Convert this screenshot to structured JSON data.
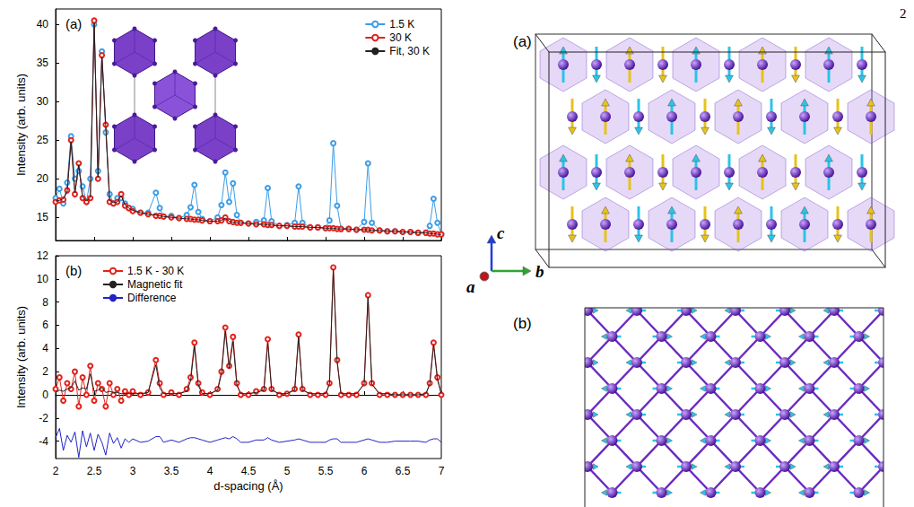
{
  "page_number": "2",
  "chart_data": [
    {
      "type": "line",
      "title": "(a)",
      "y_label": "Intensity (arb. units)",
      "xlim": [
        2,
        7
      ],
      "xticks": [
        2,
        2.5,
        3,
        3.5,
        4,
        4.5,
        5,
        5.5,
        6,
        6.5,
        7
      ],
      "ylim": [
        12,
        42
      ],
      "yticks": [
        15,
        20,
        25,
        30,
        35,
        40
      ],
      "grid": false,
      "legend": "upper right",
      "tick_labels": "y",
      "x": [
        2.0,
        2.05,
        2.1,
        2.15,
        2.2,
        2.25,
        2.3,
        2.35,
        2.4,
        2.45,
        2.5,
        2.55,
        2.6,
        2.65,
        2.7,
        2.75,
        2.8,
        2.85,
        2.9,
        2.95,
        3.0,
        3.1,
        3.2,
        3.3,
        3.35,
        3.4,
        3.5,
        3.6,
        3.7,
        3.75,
        3.8,
        3.85,
        3.9,
        4.0,
        4.1,
        4.15,
        4.2,
        4.25,
        4.3,
        4.35,
        4.4,
        4.5,
        4.6,
        4.7,
        4.75,
        4.8,
        4.9,
        5.0,
        5.1,
        5.15,
        5.2,
        5.3,
        5.4,
        5.5,
        5.55,
        5.6,
        5.65,
        5.7,
        5.8,
        5.9,
        6.0,
        6.05,
        6.1,
        6.2,
        6.3,
        6.4,
        6.5,
        6.6,
        6.7,
        6.8,
        6.85,
        6.9,
        6.95,
        7.0
      ],
      "series": [
        {
          "name": "1.5 K",
          "color": "#3b9de8",
          "marker": "circle",
          "line_style": "solid",
          "values": [
            17.5,
            18.7,
            16.8,
            19.5,
            25.5,
            20.0,
            21.0,
            19.0,
            17.0,
            20.0,
            40.0,
            21.0,
            36.5,
            26.0,
            18.0,
            16.8,
            17.5,
            17.5,
            16.8,
            16.2,
            16.1,
            15.6,
            15.6,
            18.2,
            16.2,
            15.1,
            15.2,
            14.9,
            15.3,
            16.3,
            19.2,
            15.7,
            14.8,
            14.5,
            15.0,
            16.6,
            20.8,
            17.0,
            19.4,
            15.3,
            14.3,
            14.2,
            14.4,
            14.6,
            18.8,
            14.5,
            13.9,
            14.0,
            14.3,
            19.0,
            14.3,
            13.7,
            13.7,
            13.6,
            14.6,
            24.6,
            16.5,
            13.5,
            13.5,
            13.4,
            14.4,
            22.0,
            14.3,
            13.3,
            13.2,
            13.2,
            13.1,
            13.1,
            13.0,
            13.0,
            13.9,
            17.4,
            14.3,
            12.8
          ]
        },
        {
          "name": "30 K",
          "color": "#e3221c",
          "marker": "circle",
          "line_style": "solid",
          "values": [
            17.0,
            17.2,
            17.3,
            18.5,
            25.0,
            18.0,
            22.0,
            17.5,
            17.0,
            17.5,
            40.5,
            20.0,
            36.0,
            27.0,
            17.0,
            16.8,
            17.0,
            18.0,
            16.5,
            16.2,
            15.8,
            15.6,
            15.4,
            15.2,
            15.2,
            15.1,
            15.0,
            14.9,
            14.8,
            14.8,
            14.7,
            14.7,
            14.6,
            14.5,
            14.5,
            14.6,
            15.0,
            14.5,
            14.4,
            14.3,
            14.3,
            14.2,
            14.1,
            14.1,
            14.0,
            14.0,
            13.9,
            13.9,
            13.8,
            13.8,
            13.8,
            13.7,
            13.7,
            13.6,
            13.6,
            13.6,
            13.5,
            13.5,
            13.5,
            13.4,
            13.4,
            13.4,
            13.3,
            13.3,
            13.2,
            13.2,
            13.1,
            13.1,
            13.0,
            13.0,
            12.9,
            12.9,
            12.8,
            12.8
          ]
        },
        {
          "name": "Fit, 30 K",
          "color": "#222222",
          "marker": "none",
          "line_style": "solid",
          "values": [
            17.1,
            17.2,
            17.4,
            18.3,
            24.8,
            18.2,
            21.8,
            17.6,
            17.1,
            17.6,
            40.2,
            20.2,
            35.8,
            26.8,
            17.2,
            16.9,
            17.0,
            17.8,
            16.6,
            16.2,
            15.9,
            15.6,
            15.4,
            15.3,
            15.2,
            15.1,
            15.0,
            14.9,
            14.8,
            14.8,
            14.7,
            14.7,
            14.6,
            14.5,
            14.5,
            14.6,
            14.9,
            14.5,
            14.4,
            14.3,
            14.3,
            14.2,
            14.1,
            14.1,
            14.0,
            14.0,
            13.9,
            13.9,
            13.8,
            13.8,
            13.8,
            13.7,
            13.7,
            13.6,
            13.6,
            13.6,
            13.5,
            13.5,
            13.5,
            13.4,
            13.4,
            13.4,
            13.3,
            13.3,
            13.2,
            13.2,
            13.1,
            13.1,
            13.0,
            13.0,
            12.9,
            12.9,
            12.8,
            12.8
          ]
        }
      ]
    },
    {
      "type": "line",
      "title": "(b)",
      "x_label": "d-spacing (Å)",
      "y_label": "Intensity (arb. units)",
      "xlim": [
        2,
        7
      ],
      "xticks": [
        2,
        2.5,
        3,
        3.5,
        4,
        4.5,
        5,
        5.5,
        6,
        6.5,
        7
      ],
      "ylim": [
        -5.5,
        12
      ],
      "yticks": [
        -4,
        -2,
        0,
        2,
        4,
        6,
        8,
        10,
        12
      ],
      "grid": false,
      "legend": "upper left",
      "x": [
        2.0,
        2.05,
        2.1,
        2.15,
        2.2,
        2.25,
        2.3,
        2.35,
        2.4,
        2.45,
        2.5,
        2.55,
        2.6,
        2.65,
        2.7,
        2.75,
        2.8,
        2.85,
        2.9,
        2.95,
        3.0,
        3.1,
        3.2,
        3.3,
        3.35,
        3.4,
        3.5,
        3.6,
        3.7,
        3.75,
        3.8,
        3.85,
        3.9,
        4.0,
        4.1,
        4.15,
        4.2,
        4.25,
        4.3,
        4.35,
        4.4,
        4.5,
        4.6,
        4.7,
        4.75,
        4.8,
        4.9,
        5.0,
        5.1,
        5.15,
        5.2,
        5.3,
        5.4,
        5.5,
        5.55,
        5.6,
        5.65,
        5.7,
        5.8,
        5.9,
        6.0,
        6.05,
        6.1,
        6.2,
        6.3,
        6.4,
        6.5,
        6.6,
        6.7,
        6.8,
        6.85,
        6.9,
        6.95,
        7.0
      ],
      "series": [
        {
          "name": "1.5 K - 30 K",
          "color": "#e3221c",
          "marker": "circle",
          "line_style": "solid",
          "values": [
            0.5,
            1.5,
            -0.5,
            1.0,
            0.5,
            2.0,
            -1.0,
            1.5,
            0.0,
            2.5,
            -0.5,
            1.0,
            0.5,
            -1.0,
            1.0,
            0.0,
            0.5,
            -0.5,
            0.3,
            0.0,
            0.3,
            0.0,
            0.2,
            3.0,
            1.0,
            0.0,
            0.2,
            0.0,
            0.5,
            1.5,
            4.5,
            1.0,
            0.2,
            0.0,
            0.5,
            2.0,
            5.8,
            2.5,
            5.0,
            1.0,
            0.0,
            0.0,
            0.3,
            0.5,
            4.8,
            0.5,
            0.0,
            0.1,
            0.5,
            5.2,
            0.5,
            0.0,
            0.0,
            0.0,
            1.0,
            11.0,
            3.0,
            0.0,
            0.0,
            0.0,
            1.0,
            8.6,
            1.0,
            0.0,
            0.0,
            0.0,
            0.0,
            0.0,
            0.0,
            0.0,
            1.0,
            4.5,
            1.5,
            0.0
          ]
        },
        {
          "name": "Magnetic fit",
          "color": "#222222",
          "marker": "none",
          "line_style": "solid",
          "values": [
            0.2,
            0.4,
            0.3,
            0.5,
            0.6,
            1.2,
            0.4,
            0.6,
            0.5,
            1.8,
            0.3,
            0.4,
            0.6,
            0.2,
            0.3,
            0.2,
            0.2,
            0.1,
            0.1,
            0.1,
            0.1,
            0.1,
            0.2,
            2.6,
            0.6,
            0.1,
            0.1,
            0.1,
            0.3,
            1.2,
            4.2,
            0.8,
            0.1,
            0.1,
            0.4,
            1.8,
            5.5,
            2.3,
            4.6,
            0.8,
            0.1,
            0.1,
            0.2,
            0.4,
            4.5,
            0.4,
            0.1,
            0.1,
            0.4,
            5.0,
            0.4,
            0.1,
            0.1,
            0.1,
            0.9,
            10.8,
            2.8,
            0.1,
            0.1,
            0.1,
            0.9,
            8.4,
            0.9,
            0.1,
            0.1,
            0.0,
            0.0,
            0.0,
            0.0,
            0.1,
            0.9,
            4.3,
            1.3,
            0.1
          ]
        },
        {
          "name": "Difference",
          "color": "#2323c8",
          "marker": "none",
          "line_style": "solid",
          "values": [
            -3.7,
            -2.9,
            -4.8,
            -3.5,
            -4.1,
            -3.2,
            -5.4,
            -3.1,
            -4.5,
            -3.3,
            -4.8,
            -3.4,
            -4.1,
            -5.2,
            -3.3,
            -4.2,
            -3.7,
            -4.6,
            -3.8,
            -4.1,
            -3.8,
            -4.1,
            -4.0,
            -3.6,
            -3.6,
            -4.1,
            -3.9,
            -4.1,
            -3.8,
            -3.7,
            -3.7,
            -3.8,
            -3.9,
            -4.1,
            -3.9,
            -3.8,
            -3.7,
            -3.8,
            -3.6,
            -3.8,
            -4.1,
            -4.1,
            -3.9,
            -3.9,
            -3.7,
            -3.9,
            -4.1,
            -4.0,
            -3.9,
            -3.8,
            -3.9,
            -4.1,
            -4.1,
            -4.1,
            -3.9,
            -3.8,
            -3.8,
            -4.1,
            -4.1,
            -4.1,
            -3.9,
            -3.8,
            -3.9,
            -4.1,
            -4.1,
            -4.0,
            -4.0,
            -4.0,
            -4.0,
            -4.1,
            -3.9,
            -3.8,
            -3.8,
            -4.1
          ]
        }
      ]
    }
  ],
  "structure": {
    "panels": [
      {
        "label": "(a)",
        "axes": [
          "a",
          "b",
          "c"
        ]
      },
      {
        "label": "(b)"
      }
    ]
  }
}
